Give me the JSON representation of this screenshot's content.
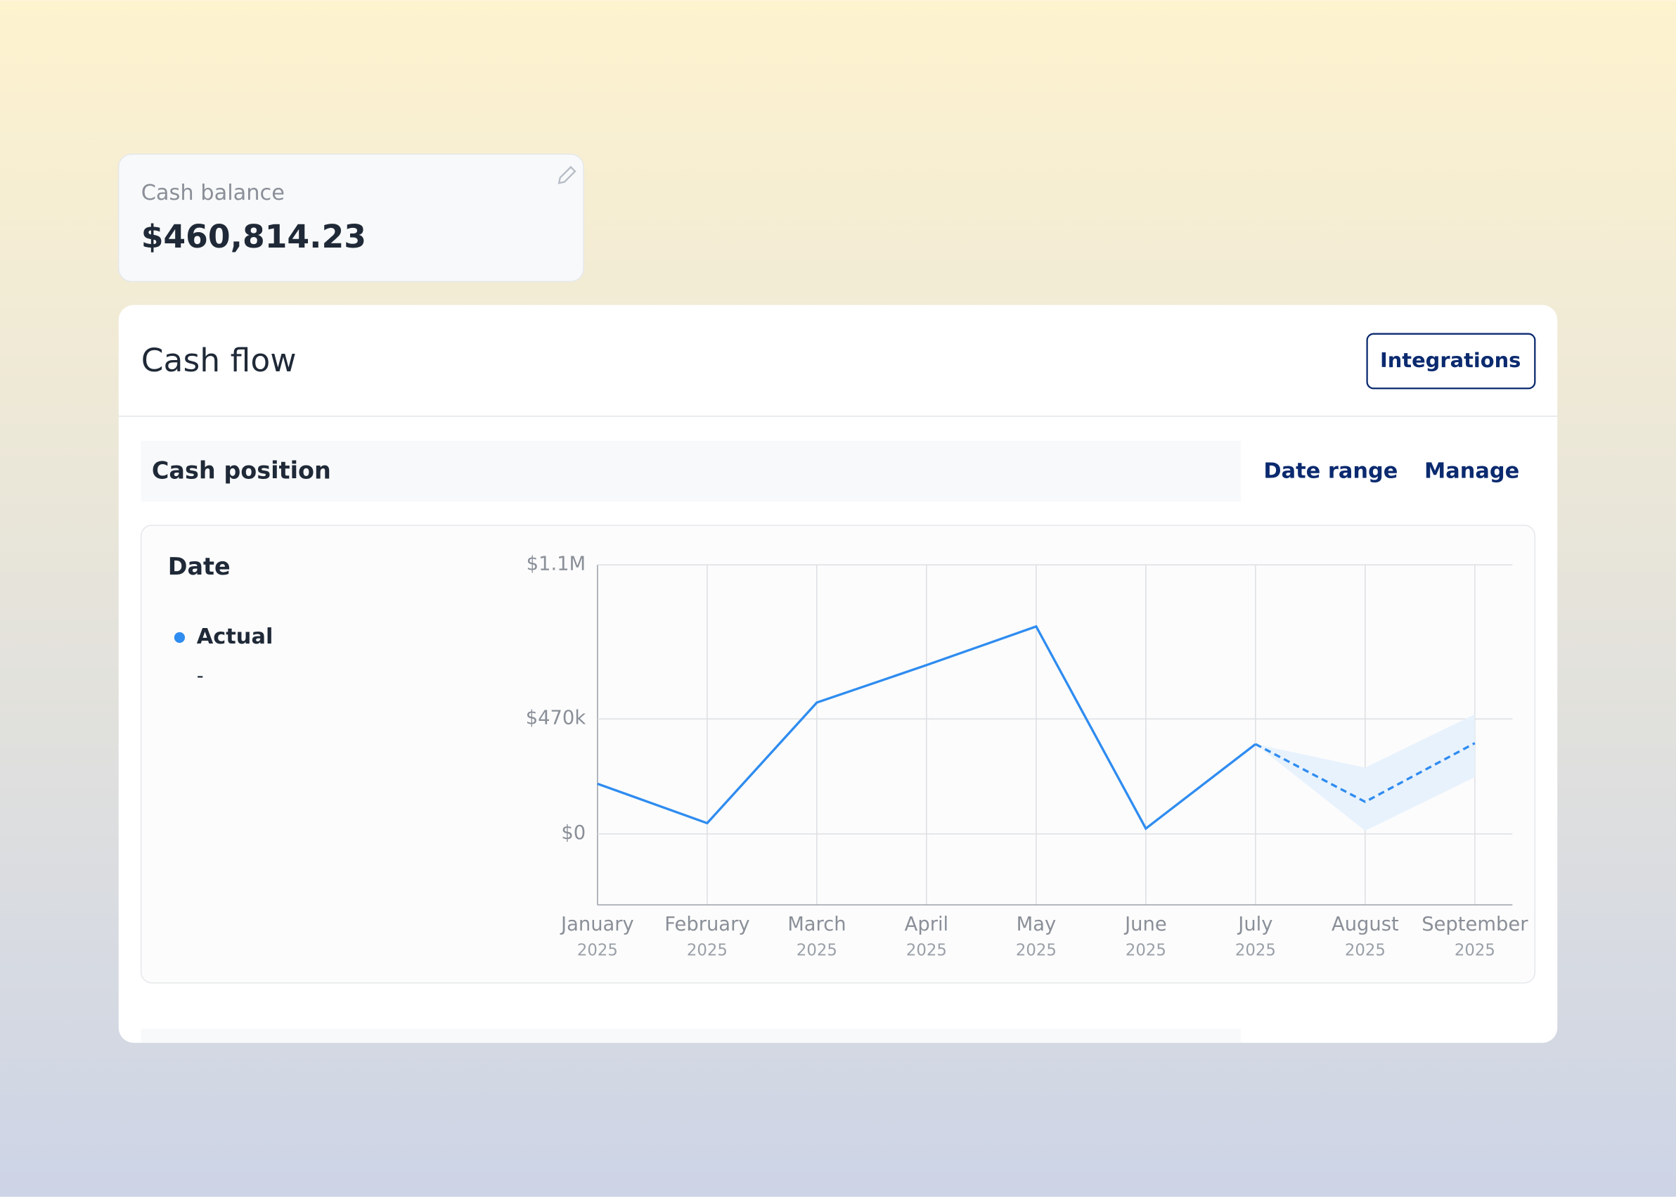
{
  "balance_card": {
    "label": "Cash balance",
    "value": "$460,814.23"
  },
  "cash_flow": {
    "title": "Cash flow",
    "button": "Integrations",
    "section": {
      "title": "Cash position",
      "actions": [
        "Date range",
        "Manage"
      ]
    },
    "legend": {
      "title": "Date",
      "current_value": "-"
    }
  },
  "chart_data": {
    "type": "line",
    "categories": [
      "January",
      "February",
      "March",
      "April",
      "May",
      "June",
      "July",
      "August",
      "September"
    ],
    "category_sublabels": [
      "2025",
      "2025",
      "2025",
      "2025",
      "2025",
      "2025",
      "2025",
      "2025",
      "2025"
    ],
    "series": [
      {
        "name": "Actual",
        "color": "#2f8cf0",
        "values": [
          205000,
          44000,
          537000,
          690000,
          848000,
          22000,
          367000,
          null,
          null
        ]
      },
      {
        "color": "#2f8cf0",
        "dashed": true,
        "values": [
          null,
          null,
          null,
          null,
          null,
          null,
          367000,
          131000,
          371000
        ],
        "band_lower": [
          null,
          null,
          null,
          null,
          null,
          null,
          367000,
          13000,
          232000
        ],
        "band_upper": [
          null,
          null,
          null,
          null,
          null,
          null,
          367000,
          271000,
          489000
        ],
        "band_color": "#e8f2fd"
      }
    ],
    "ylim": [
      -290000,
      1100000
    ],
    "yticks": [
      {
        "value": 1100000,
        "label": "$1.1M"
      },
      {
        "value": 470000,
        "label": "$470k"
      },
      {
        "value": 0,
        "label": "$0"
      }
    ],
    "grid": true
  }
}
